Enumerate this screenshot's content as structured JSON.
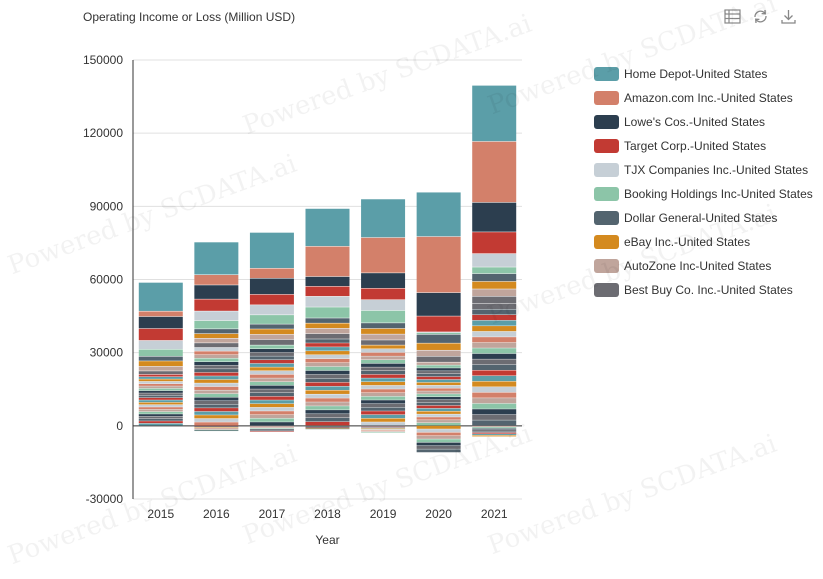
{
  "toolbar": {
    "icons": [
      "data-view-icon",
      "refresh-icon",
      "download-icon"
    ]
  },
  "watermark": "Powered by SCDATA.ai",
  "chart_data": {
    "type": "bar",
    "stacked": true,
    "title": "Operating Income or Loss (Million USD)",
    "xlabel": "Year",
    "ylabel": "",
    "categories": [
      "2015",
      "2016",
      "2017",
      "2018",
      "2019",
      "2020",
      "2021"
    ],
    "ylim": [
      -30000,
      150000
    ],
    "yticks": [
      -30000,
      0,
      30000,
      60000,
      90000,
      120000,
      150000
    ],
    "grid": true,
    "legend_position": "right",
    "series": [
      {
        "name": "Home Depot-United States",
        "color": "#5b9ea8",
        "values": [
          11800,
          13400,
          14700,
          15500,
          15800,
          18200,
          23000
        ]
      },
      {
        "name": "Amazon.com Inc.-United States",
        "color": "#d3806a",
        "values": [
          2200,
          4200,
          4100,
          12400,
          14500,
          23000,
          25000
        ]
      },
      {
        "name": "Lowe's Cos.-United States",
        "color": "#2c3e4f",
        "values": [
          4900,
          5800,
          6600,
          4000,
          6300,
          9600,
          12100
        ]
      },
      {
        "name": "Target Corp.-United States",
        "color": "#c23a33",
        "values": [
          4900,
          4900,
          4300,
          4100,
          4700,
          6500,
          8900
        ]
      },
      {
        "name": "TJX Companies Inc.-United States",
        "color": "#c6cfd6",
        "values": [
          3600,
          3900,
          4100,
          4400,
          4400,
          300,
          5500
        ]
      },
      {
        "name": "Booking Holdings Inc-United States",
        "color": "#8cc5a8",
        "values": [
          2900,
          3400,
          3800,
          4500,
          5100,
          700,
          2700
        ]
      },
      {
        "name": "Dollar General-United States",
        "color": "#53646f",
        "values": [
          1900,
          1950,
          2000,
          2100,
          2300,
          3600,
          3200
        ]
      },
      {
        "name": "eBay Inc.-United States",
        "color": "#d48a1f",
        "values": [
          2200,
          1900,
          2200,
          2100,
          2300,
          2900,
          3100
        ]
      },
      {
        "name": "AutoZone Inc-United States",
        "color": "#c0a59c",
        "values": [
          1900,
          1900,
          2100,
          2200,
          2400,
          2500,
          3000
        ]
      },
      {
        "name": "Best Buy Co. Inc.-United States",
        "color": "#6c6c72",
        "values": [
          1400,
          1900,
          2300,
          2200,
          2100,
          2400,
          3000
        ]
      }
    ],
    "other_segments": {
      "colors": [
        "#5b9ea8",
        "#d3806a",
        "#2c3e4f",
        "#c23a33",
        "#c6cfd6",
        "#8cc5a8",
        "#53646f",
        "#d48a1f",
        "#c0a59c",
        "#6c6c72"
      ],
      "positive_totals": [
        21000,
        32000,
        33000,
        35500,
        33000,
        26000,
        50000
      ],
      "negative_totals": [
        0,
        -2200,
        -2600,
        -1500,
        -3000,
        -11000,
        -4500
      ]
    }
  }
}
